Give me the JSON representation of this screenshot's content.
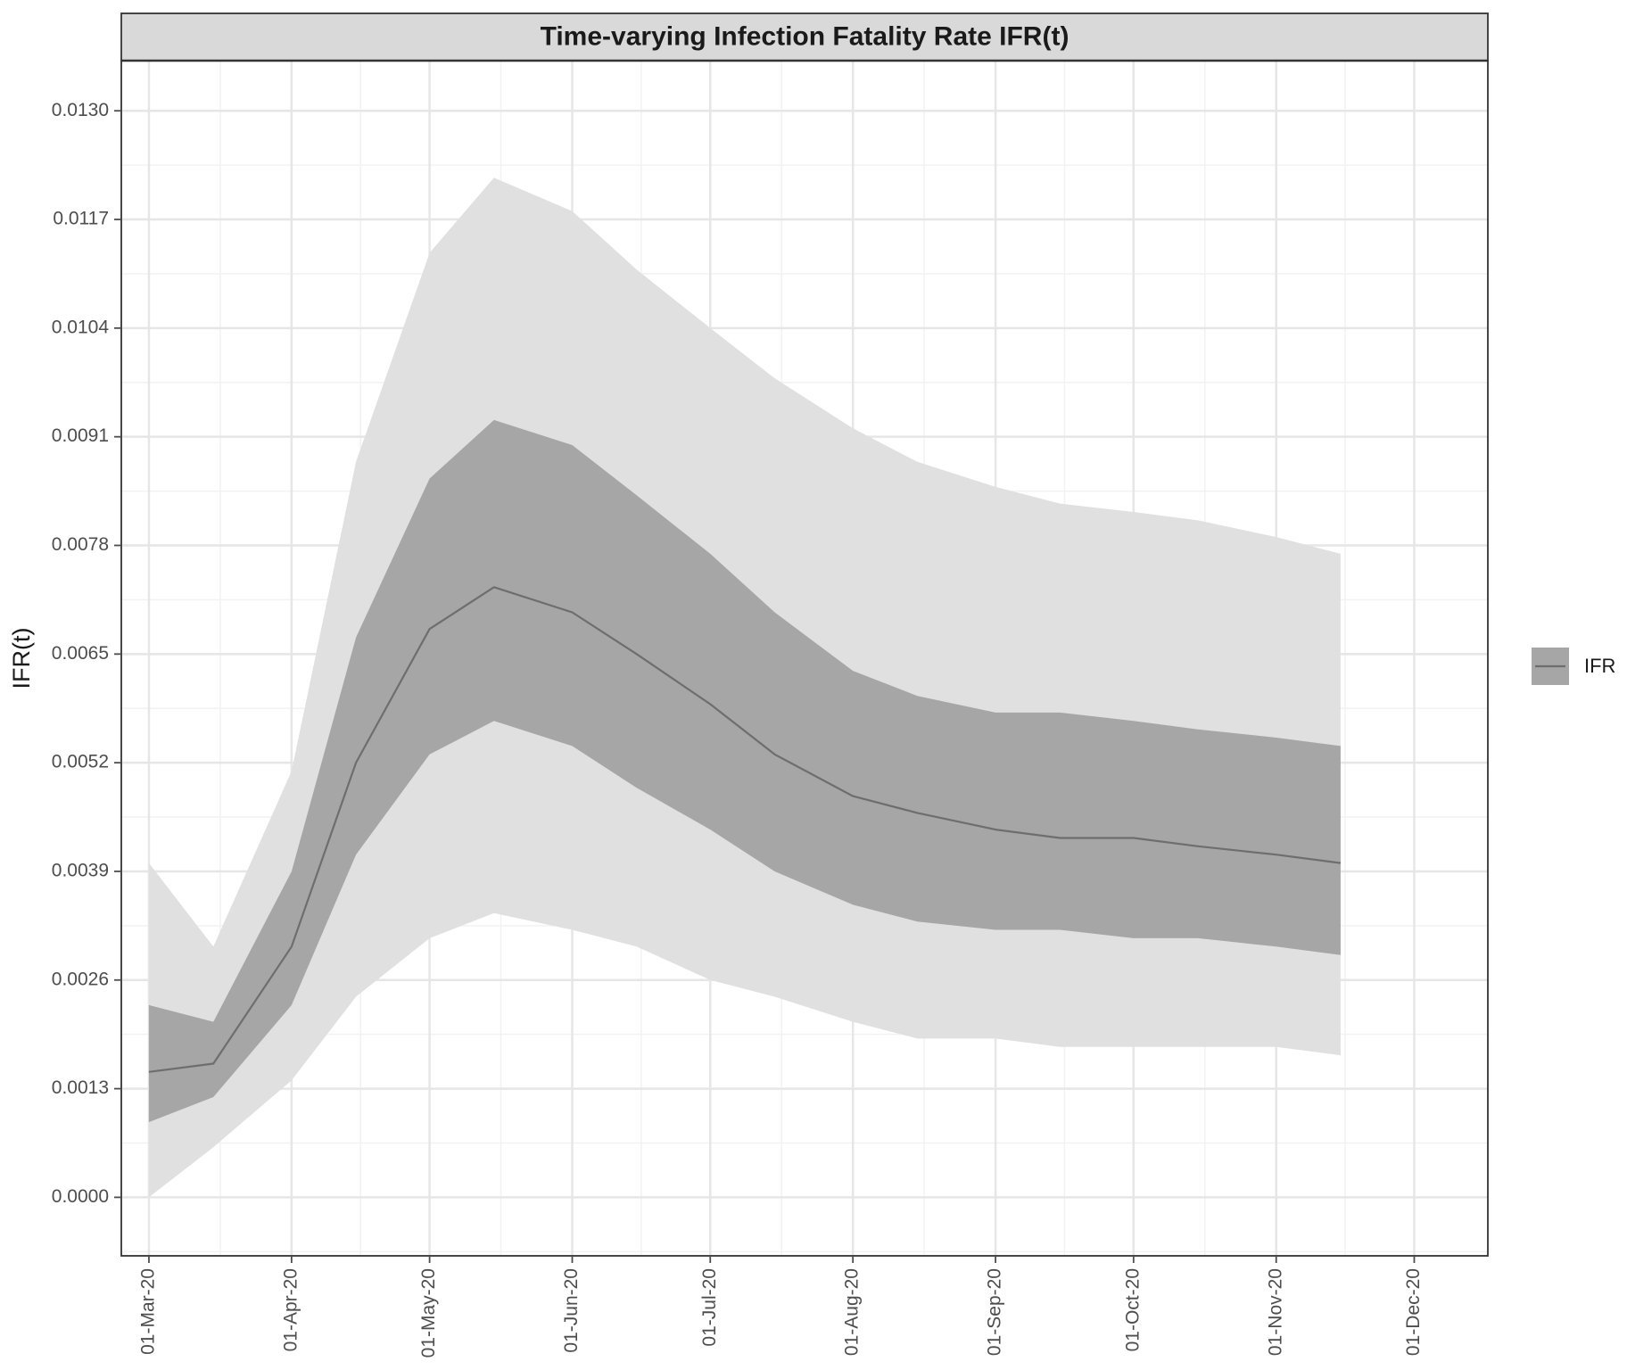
{
  "chart_data": {
    "type": "area",
    "title": "Time-varying Infection Fatality Rate IFR(t)",
    "xlabel": "",
    "ylabel": "IFR(t)",
    "x_scale": "date",
    "xlim": [
      "2020-02-24",
      "2020-12-17"
    ],
    "ylim": [
      -0.0007,
      0.0136
    ],
    "x_ticks": [
      "2020-03-01",
      "2020-04-01",
      "2020-05-01",
      "2020-06-01",
      "2020-07-01",
      "2020-08-01",
      "2020-09-01",
      "2020-10-01",
      "2020-11-01",
      "2020-12-01"
    ],
    "x_tick_labels": [
      "01-Mar-20",
      "01-Apr-20",
      "01-May-20",
      "01-Jun-20",
      "01-Jul-20",
      "01-Aug-20",
      "01-Sep-20",
      "01-Oct-20",
      "01-Nov-20",
      "01-Dec-20"
    ],
    "y_ticks": [
      0.0,
      0.0013,
      0.0026,
      0.0039,
      0.0052,
      0.0065,
      0.0078,
      0.0091,
      0.0104,
      0.0117,
      0.013
    ],
    "y_tick_labels": [
      "0.0000",
      "0.0013",
      "0.0026",
      "0.0039",
      "0.0052",
      "0.0065",
      "0.0078",
      "0.0091",
      "0.0104",
      "0.0117",
      "0.0130"
    ],
    "grid": true,
    "legend": {
      "position": "right",
      "entries": [
        "IFR"
      ]
    },
    "x": [
      "2020-03-01",
      "2020-03-15",
      "2020-04-01",
      "2020-04-15",
      "2020-05-01",
      "2020-05-15",
      "2020-06-01",
      "2020-06-15",
      "2020-07-01",
      "2020-07-15",
      "2020-08-01",
      "2020-08-15",
      "2020-09-01",
      "2020-09-15",
      "2020-10-01",
      "2020-10-15",
      "2020-11-01",
      "2020-11-15"
    ],
    "series": [
      {
        "name": "IFR",
        "role": "median",
        "values": [
          0.0015,
          0.0016,
          0.003,
          0.0052,
          0.0068,
          0.0073,
          0.007,
          0.0065,
          0.0059,
          0.0053,
          0.0048,
          0.0046,
          0.0044,
          0.0043,
          0.0043,
          0.0042,
          0.0041,
          0.004
        ]
      },
      {
        "role": "inner_band_lower",
        "values": [
          0.0009,
          0.0012,
          0.0023,
          0.0041,
          0.0053,
          0.0057,
          0.0054,
          0.0049,
          0.0044,
          0.0039,
          0.0035,
          0.0033,
          0.0032,
          0.0032,
          0.0031,
          0.0031,
          0.003,
          0.0029
        ]
      },
      {
        "role": "inner_band_upper",
        "values": [
          0.0023,
          0.0021,
          0.0039,
          0.0067,
          0.0086,
          0.0093,
          0.009,
          0.0084,
          0.0077,
          0.007,
          0.0063,
          0.006,
          0.0058,
          0.0058,
          0.0057,
          0.0056,
          0.0055,
          0.0054
        ]
      },
      {
        "role": "outer_band_lower",
        "values": [
          0.0,
          0.0006,
          0.0014,
          0.0024,
          0.0031,
          0.0034,
          0.0032,
          0.003,
          0.0026,
          0.0024,
          0.0021,
          0.0019,
          0.0019,
          0.0018,
          0.0018,
          0.0018,
          0.0018,
          0.0017
        ]
      },
      {
        "role": "outer_band_upper",
        "values": [
          0.004,
          0.003,
          0.0051,
          0.0088,
          0.0113,
          0.0122,
          0.0118,
          0.0111,
          0.0104,
          0.0098,
          0.0092,
          0.0088,
          0.0085,
          0.0083,
          0.0082,
          0.0081,
          0.0079,
          0.0077
        ]
      }
    ],
    "colors": {
      "background": "#ffffff",
      "panel_border": "#333333",
      "strip_fill": "#d9d9d9",
      "grid_major": "#e6e6e6",
      "grid_minor": "#f2f2f2",
      "outer_band": "#e0e0e0",
      "inner_band": "#a6a6a6",
      "line": "#6e6e6e",
      "tick": "#4d4d4d"
    }
  }
}
